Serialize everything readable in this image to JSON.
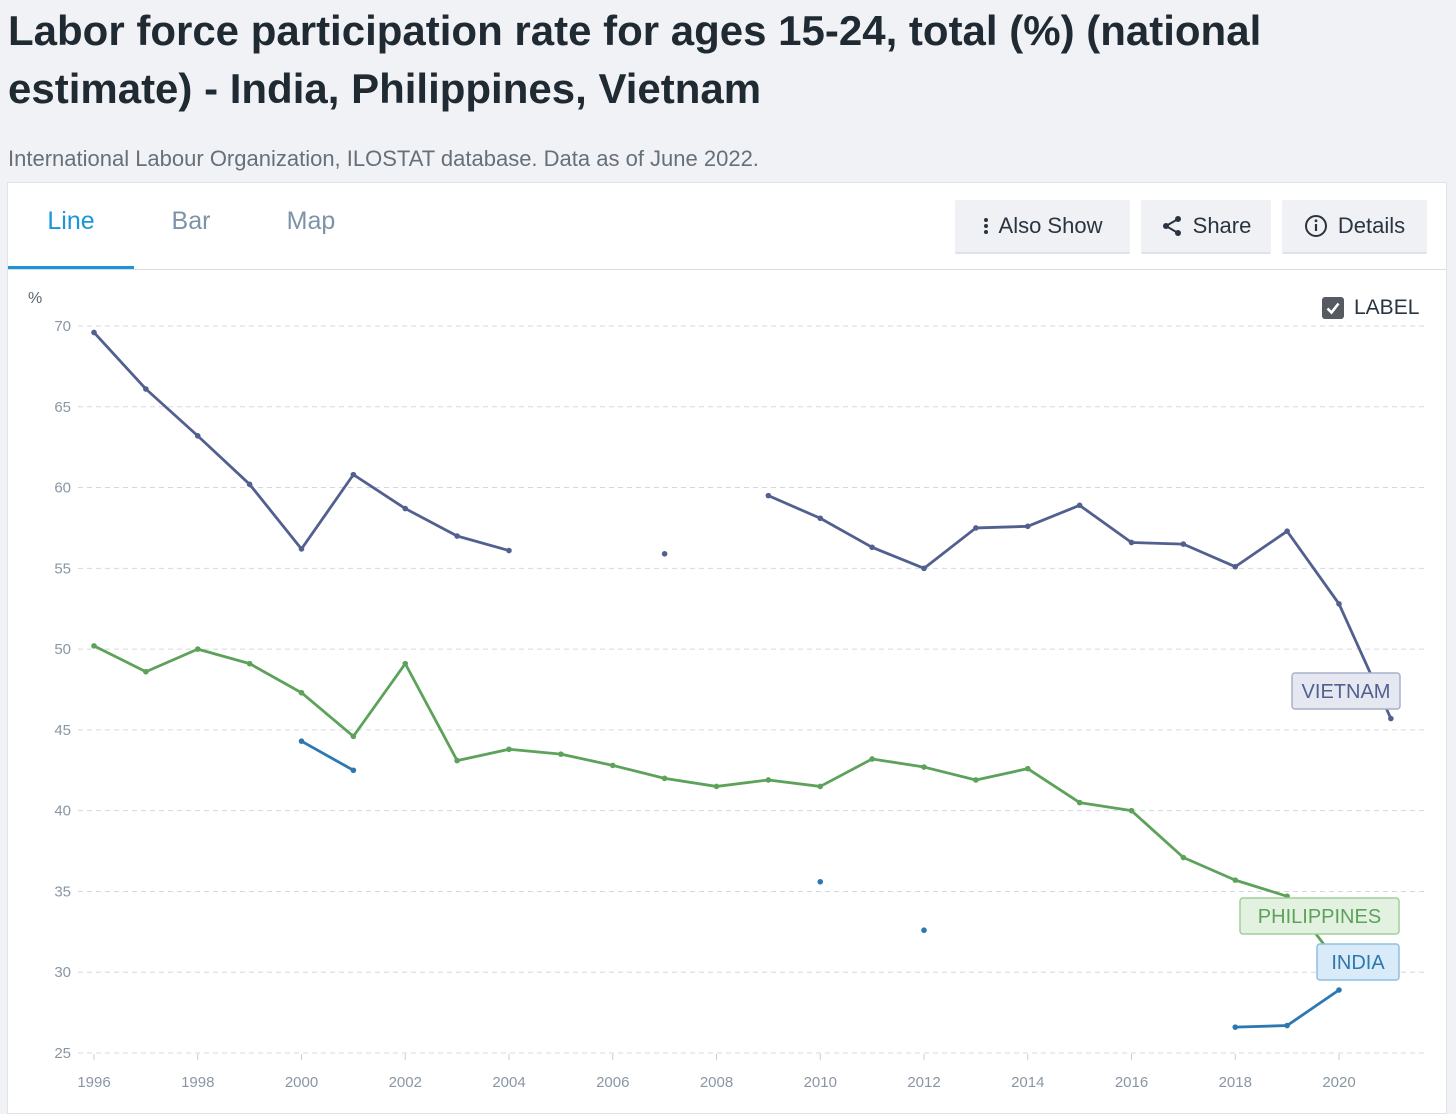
{
  "header": {
    "title": "Labor force participation rate for ages 15-24, total (%) (national estimate) - India, Philippines, Vietnam",
    "source": "International Labour Organization, ILOSTAT database. Data as of June 2022."
  },
  "tabs": [
    {
      "label": "Line",
      "active": true
    },
    {
      "label": "Bar",
      "active": false
    },
    {
      "label": "Map",
      "active": false
    }
  ],
  "actions": {
    "also_show": "Also Show",
    "share": "Share",
    "details": "Details"
  },
  "label_toggle": {
    "text": "LABEL",
    "checked": true
  },
  "chart_data": {
    "type": "line",
    "ylabel": "%",
    "ylim": [
      25,
      70
    ],
    "yticks": [
      25,
      30,
      35,
      40,
      45,
      50,
      55,
      60,
      65,
      70
    ],
    "xlim": [
      1996,
      2021
    ],
    "xticks": [
      1996,
      1998,
      2000,
      2002,
      2004,
      2006,
      2008,
      2010,
      2012,
      2014,
      2016,
      2018,
      2020
    ],
    "grid": true,
    "series": [
      {
        "name": "VIETNAM",
        "color": "#52608f",
        "label_fill": "#e6e8f1",
        "label_stroke": "#a9b0cb",
        "points": [
          [
            1996,
            69.6
          ],
          [
            1997,
            66.1
          ],
          [
            1998,
            63.2
          ],
          [
            1999,
            60.2
          ],
          [
            2000,
            56.2
          ],
          [
            2001,
            60.8
          ],
          [
            2002,
            58.7
          ],
          [
            2003,
            57.0
          ],
          [
            2004,
            56.1
          ],
          [
            2007,
            55.9
          ],
          [
            2009,
            59.5
          ],
          [
            2010,
            58.1
          ],
          [
            2011,
            56.3
          ],
          [
            2012,
            55.0
          ],
          [
            2013,
            57.5
          ],
          [
            2014,
            57.6
          ],
          [
            2015,
            58.9
          ],
          [
            2016,
            56.6
          ],
          [
            2017,
            56.5
          ],
          [
            2018,
            55.1
          ],
          [
            2019,
            57.3
          ],
          [
            2020,
            52.8
          ],
          [
            2021,
            45.7
          ]
        ]
      },
      {
        "name": "PHILIPPINES",
        "color": "#5da25a",
        "label_fill": "#e3f1e0",
        "label_stroke": "#9fcf98",
        "points": [
          [
            1996,
            50.2
          ],
          [
            1997,
            48.6
          ],
          [
            1998,
            50.0
          ],
          [
            1999,
            49.1
          ],
          [
            2000,
            47.3
          ],
          [
            2001,
            44.6
          ],
          [
            2002,
            49.1
          ],
          [
            2003,
            43.1
          ],
          [
            2004,
            43.8
          ],
          [
            2005,
            43.5
          ],
          [
            2006,
            42.8
          ],
          [
            2007,
            42.0
          ],
          [
            2008,
            41.5
          ],
          [
            2009,
            41.9
          ],
          [
            2010,
            41.5
          ],
          [
            2011,
            43.2
          ],
          [
            2012,
            42.7
          ],
          [
            2013,
            41.9
          ],
          [
            2014,
            42.6
          ],
          [
            2015,
            40.5
          ],
          [
            2016,
            40.0
          ],
          [
            2017,
            37.1
          ],
          [
            2018,
            35.7
          ],
          [
            2019,
            34.7
          ],
          [
            2020,
            30.5
          ]
        ]
      },
      {
        "name": "INDIA",
        "color": "#2e78b2",
        "label_fill": "#d9ebf8",
        "label_stroke": "#8fbfe3",
        "points": [
          [
            2000,
            44.3
          ],
          [
            2001,
            42.5
          ],
          [
            2010,
            35.6
          ],
          [
            2012,
            32.6
          ],
          [
            2018,
            26.6
          ],
          [
            2019,
            26.7
          ],
          [
            2020,
            28.9
          ]
        ]
      }
    ]
  }
}
